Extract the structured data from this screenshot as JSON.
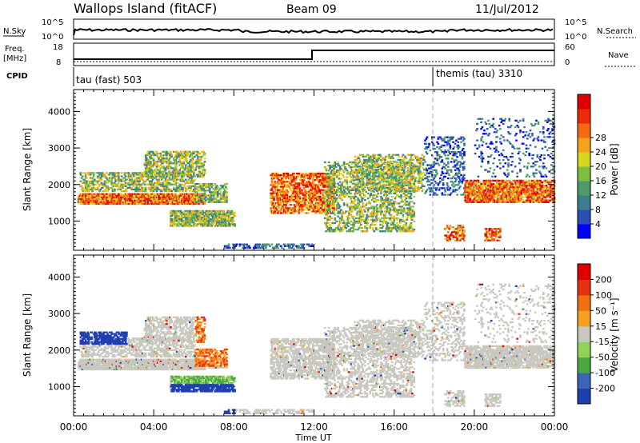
{
  "header": {
    "station": "Wallops Island (fitACF)",
    "beam": "Beam 09",
    "date": "11/Jul/2012"
  },
  "top_panels": {
    "nsky_label": "N.Sky",
    "nsky_ticks": [
      "10^5",
      "10^0"
    ],
    "nsearch_label": "N.Search",
    "nsearch_ticks": [
      "10^5",
      "10^0"
    ],
    "freq_label_1": "Freq.",
    "freq_label_2": "[MHz]",
    "freq_ticks": [
      "18",
      "8"
    ],
    "nave_label": "Nave",
    "nave_ticks": [
      "60",
      "0"
    ],
    "cpid_label": "CPID",
    "cpid_segments": [
      {
        "name": "tau (fast) 503",
        "start_hour": 0
      },
      {
        "name": "themis (tau) 3310",
        "start_hour": 18
      }
    ]
  },
  "chart_data": [
    {
      "type": "heatmap",
      "title": "",
      "xlabel": "Time UT",
      "ylabel": "Slant Range [km]",
      "x_ticks": [
        "00:00",
        "04:00",
        "08:00",
        "12:00",
        "16:00",
        "20:00",
        "00:00"
      ],
      "y_ticks": [
        "1000",
        "2000",
        "3000",
        "4000"
      ],
      "ylim": [
        200,
        4600
      ],
      "colorbar": {
        "label": "Power [dB]",
        "ticks": [
          "4",
          "8",
          "12",
          "16",
          "20",
          "24",
          "28"
        ],
        "colors": [
          "#0000ff",
          "#2a4fb4",
          "#3b7f8f",
          "#4f9a6a",
          "#7fbf3f",
          "#d8d81a",
          "#f7a21b",
          "#f36a12",
          "#ec2a0a",
          "#e00000"
        ]
      }
    },
    {
      "type": "heatmap",
      "title": "",
      "xlabel": "Time UT",
      "ylabel": "Slant Range [km]",
      "x_ticks": [
        "00:00",
        "04:00",
        "08:00",
        "12:00",
        "16:00",
        "20:00",
        "00:00"
      ],
      "y_ticks": [
        "1000",
        "2000",
        "3000",
        "4000"
      ],
      "ylim": [
        200,
        4600
      ],
      "colorbar": {
        "label": "Velocity [m s⁻¹]",
        "ticks": [
          "200",
          "100",
          "50",
          "15",
          "-15",
          "-50",
          "-100",
          "-200"
        ],
        "colors": [
          "#1f3fb0",
          "#3b66b8",
          "#4aa844",
          "#8fd35a",
          "#c8c8c0",
          "#f5a020",
          "#f07010",
          "#e83010",
          "#e00000"
        ]
      }
    }
  ]
}
